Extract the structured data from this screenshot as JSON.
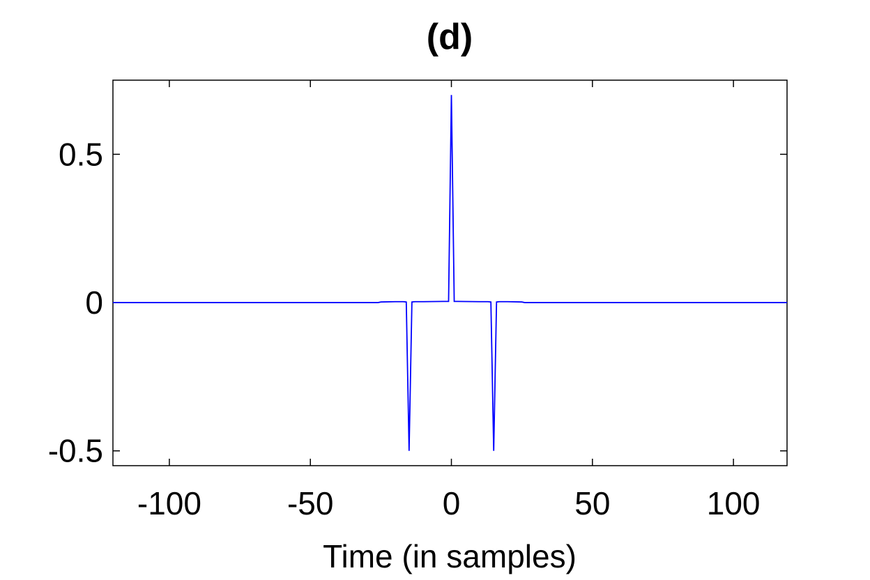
{
  "chart_data": {
    "type": "line",
    "title": "(d)",
    "xlabel": "Time (in samples)",
    "ylabel": "",
    "xlim": [
      -120,
      119
    ],
    "ylim": [
      -0.55,
      0.75
    ],
    "xticks": [
      -100,
      -50,
      0,
      50,
      100
    ],
    "xtick_labels": [
      "-100",
      "-50",
      "0",
      "50",
      "100"
    ],
    "yticks": [
      -0.5,
      0,
      0.5
    ],
    "ytick_labels": [
      "-0.5",
      "0",
      "0.5"
    ],
    "grid": false,
    "series": [
      {
        "color": "#0000ff",
        "x": [
          -120,
          -26,
          -25,
          -20,
          -17,
          -16,
          -15,
          -14,
          -13,
          -10,
          -2,
          -1,
          0,
          1,
          2,
          10,
          13,
          14,
          15,
          16,
          17,
          20,
          25,
          26,
          119
        ],
        "y": [
          0,
          0,
          0.002,
          0.003,
          0.003,
          0.002,
          -0.5,
          0.002,
          0.003,
          0.003,
          0.004,
          0.004,
          0.7,
          0.004,
          0.004,
          0.003,
          0.003,
          0.002,
          -0.5,
          0.002,
          0.003,
          0.003,
          0.002,
          0,
          0
        ]
      }
    ]
  }
}
